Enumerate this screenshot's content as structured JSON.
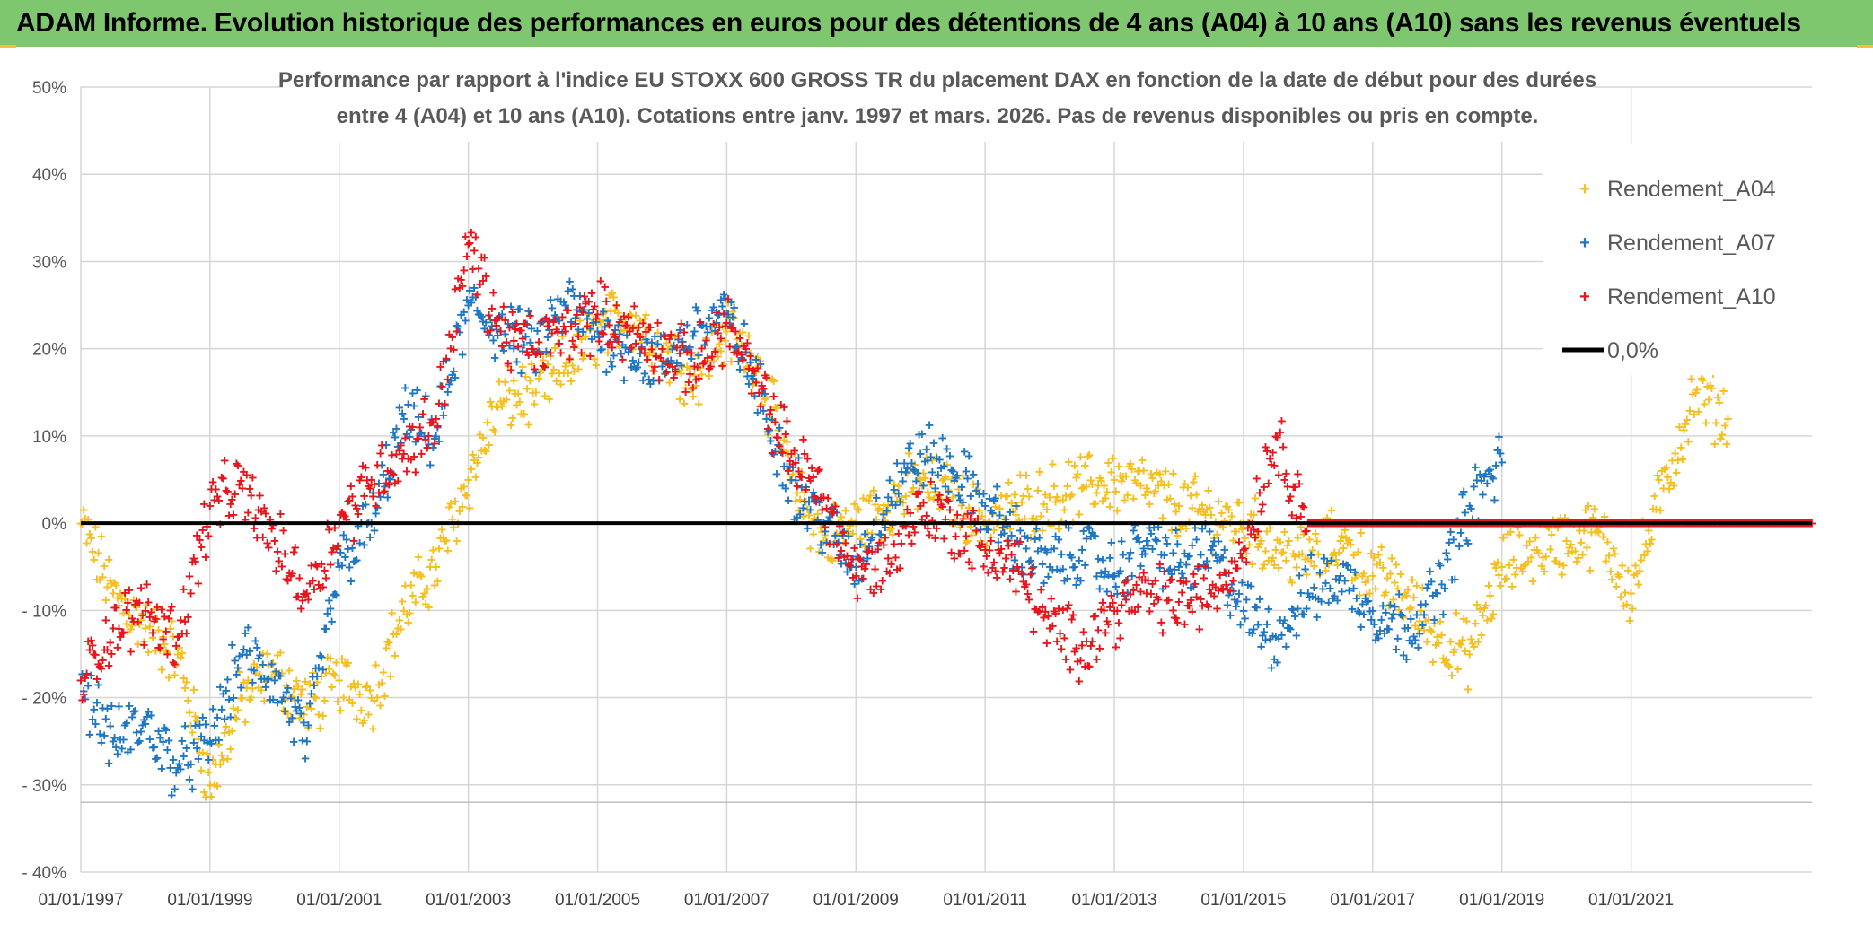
{
  "banner": {
    "title": "ADAM Informe. Evolution historique des performances en euros pour des détentions de 4 ans (A04) à 10 ans (A10) sans les revenus éventuels"
  },
  "chart_data": {
    "type": "scatter",
    "title_line1": "Performance par rapport à l'indice EU STOXX 600 GROSS TR  du placement DAX en fonction de la date de début pour des durées",
    "title_line2": "entre 4 (A04) et 10 ans (A10). Cotations entre janv. 1997 et mars. 2026. Pas de revenus disponibles ou pris en compte.",
    "xlabel": "",
    "ylabel": "",
    "xlim": [
      1997.0,
      2023.8
    ],
    "ylim": [
      -40,
      50
    ],
    "grid": true,
    "legend_position": "top-right",
    "x_tick_labels": [
      "01/01/1997",
      "01/01/1999",
      "01/01/2001",
      "01/01/2003",
      "01/01/2005",
      "01/01/2007",
      "01/01/2009",
      "01/01/2011",
      "01/01/2013",
      "01/01/2015",
      "01/01/2017",
      "01/01/2019",
      "01/01/2021"
    ],
    "x_tick_values": [
      1997,
      1999,
      2001,
      2003,
      2005,
      2007,
      2009,
      2011,
      2013,
      2015,
      2017,
      2019,
      2021
    ],
    "y_tick_labels": [
      "50%",
      "40%",
      "30%",
      "20%",
      "10%",
      "0%",
      "- 10%",
      "- 20%",
      "- 30%",
      "- 40%"
    ],
    "y_tick_values": [
      50,
      40,
      30,
      20,
      10,
      0,
      -10,
      -20,
      -30,
      -40
    ],
    "reference_line": {
      "name": "0,0%",
      "value": 0,
      "color": "#000000"
    },
    "series": [
      {
        "name": "Rendement_A04",
        "color": "#f5bf1f",
        "x": [
          1997.0,
          1997.5,
          1998.0,
          1998.5,
          1999.0,
          1999.5,
          2000.0,
          2000.5,
          2001.0,
          2001.5,
          2002.0,
          2002.5,
          2003.0,
          2003.5,
          2004.0,
          2004.5,
          2005.0,
          2005.5,
          2006.0,
          2006.5,
          2007.0,
          2007.5,
          2008.0,
          2008.5,
          2009.0,
          2009.5,
          2010.0,
          2010.5,
          2011.0,
          2011.5,
          2012.0,
          2012.5,
          2013.0,
          2013.5,
          2014.0,
          2014.5,
          2015.0,
          2015.5,
          2016.0,
          2016.5,
          2017.0,
          2017.5,
          2018.0,
          2018.5,
          2019.0,
          2019.5,
          2020.0,
          2020.5,
          2021.0,
          2021.5,
          2022.0,
          2022.5
        ],
        "values": [
          0,
          -8,
          -12,
          -15,
          -30,
          -20,
          -17,
          -21,
          -18,
          -20,
          -10,
          -5,
          5,
          14,
          15,
          18,
          22,
          24,
          20,
          17,
          22,
          18,
          5,
          -2,
          0,
          2,
          5,
          3,
          0,
          2,
          3,
          4,
          5,
          4,
          2,
          1,
          0,
          -3,
          -4,
          -2,
          -6,
          -8,
          -13,
          -15,
          -5,
          -3,
          -2,
          -1,
          -8,
          4,
          15,
          12
        ]
      },
      {
        "name": "Rendement_A07",
        "color": "#1f77c4",
        "x": [
          1997.0,
          1997.5,
          1998.0,
          1998.5,
          1999.0,
          1999.5,
          2000.0,
          2000.5,
          2001.0,
          2001.5,
          2002.0,
          2002.5,
          2003.0,
          2003.5,
          2004.0,
          2004.5,
          2005.0,
          2005.5,
          2006.0,
          2006.5,
          2007.0,
          2007.5,
          2008.0,
          2008.5,
          2009.0,
          2009.5,
          2010.0,
          2010.5,
          2011.0,
          2011.5,
          2012.0,
          2012.5,
          2013.0,
          2013.5,
          2014.0,
          2014.5,
          2015.0,
          2015.5,
          2016.0,
          2016.5,
          2017.0,
          2017.5,
          2018.0,
          2018.5,
          2019.0
        ],
        "values": [
          -18,
          -25,
          -23,
          -28,
          -25,
          -15,
          -18,
          -25,
          -5,
          0,
          12,
          10,
          25,
          22,
          20,
          25,
          22,
          20,
          18,
          22,
          24,
          15,
          5,
          0,
          -5,
          3,
          8,
          6,
          2,
          -2,
          -5,
          -3,
          -6,
          -2,
          -5,
          -3,
          -10,
          -13,
          -8,
          -6,
          -10,
          -12,
          -8,
          2,
          7
        ]
      },
      {
        "name": "Rendement_A10",
        "color": "#e8161c",
        "x": [
          1997.0,
          1997.5,
          1998.0,
          1998.5,
          1999.0,
          1999.5,
          2000.0,
          2000.5,
          2001.0,
          2001.5,
          2002.0,
          2002.5,
          2003.0,
          2003.5,
          2004.0,
          2004.5,
          2005.0,
          2005.5,
          2006.0,
          2006.5,
          2007.0,
          2007.5,
          2008.0,
          2008.5,
          2009.0,
          2009.5,
          2010.0,
          2010.5,
          2011.0,
          2011.5,
          2012.0,
          2012.5,
          2013.0,
          2013.5,
          2014.0,
          2014.5,
          2015.0,
          2015.5,
          2016.0,
          2016.5,
          2017.0,
          2017.5,
          2018.0,
          2018.5,
          2019.0,
          2019.5,
          2020.0,
          2020.5,
          2021.0,
          2021.5,
          2022.0,
          2022.5,
          2023.0,
          2023.5,
          2023.8
        ],
        "values": [
          -18,
          -12,
          -10,
          -13,
          2,
          4,
          -2,
          -8,
          0,
          5,
          8,
          12,
          32,
          22,
          20,
          22,
          24,
          22,
          20,
          18,
          23,
          15,
          8,
          3,
          -6,
          -4,
          2,
          0,
          -3,
          -5,
          -12,
          -14,
          -10,
          -8,
          -9,
          -8,
          -3,
          10,
          0,
          0,
          0,
          0,
          0,
          0,
          0,
          0,
          0,
          0,
          0,
          0,
          0,
          0,
          0,
          0,
          0
        ]
      }
    ]
  }
}
